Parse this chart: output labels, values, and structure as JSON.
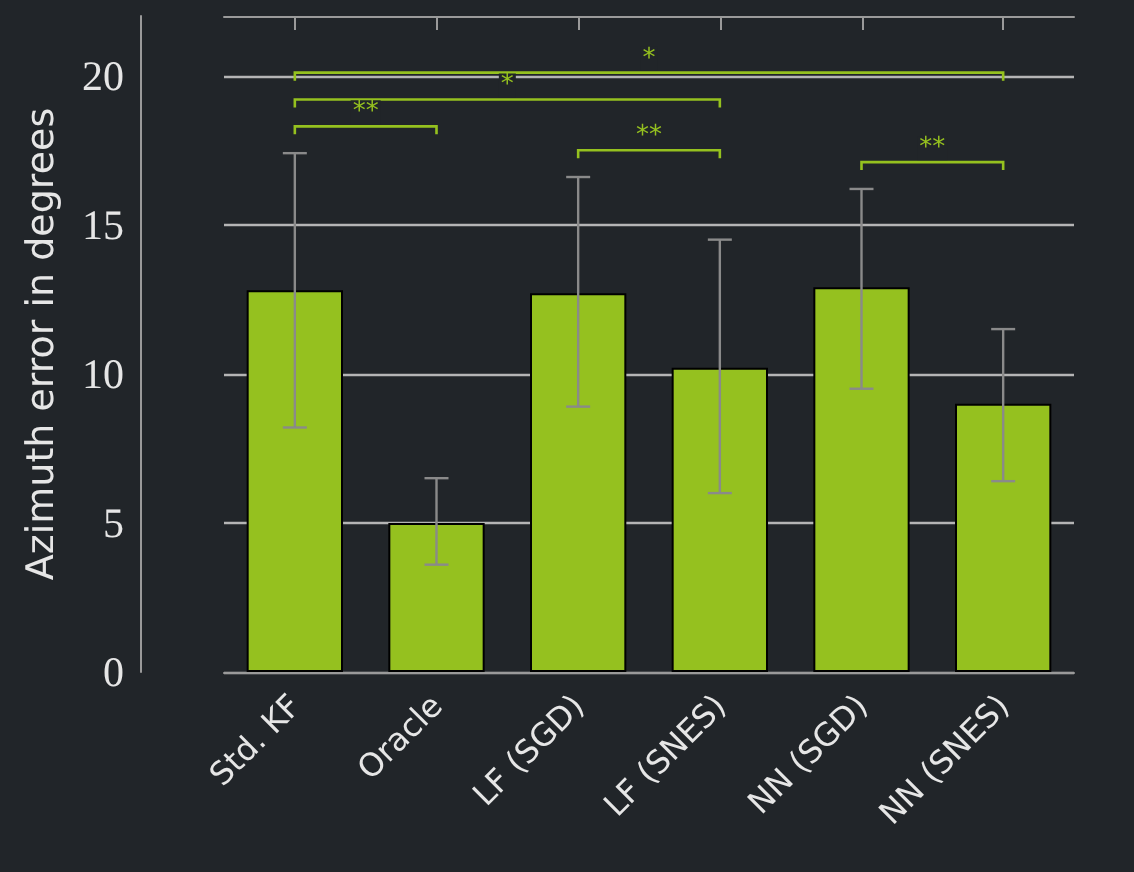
{
  "chart_data": {
    "type": "bar",
    "ylabel": "Azimuth error in degrees",
    "categories": [
      "Std. KF",
      "Oracle",
      "LF (SGD)",
      "LF (SNES)",
      "NN (SGD)",
      "NN (SNES)"
    ],
    "values": [
      12.8,
      5.0,
      12.7,
      10.2,
      12.9,
      9.0
    ],
    "errors": [
      [
        8.2,
        17.4
      ],
      [
        3.6,
        6.5
      ],
      [
        8.9,
        16.6
      ],
      [
        6.0,
        14.5
      ],
      [
        9.5,
        16.2
      ],
      [
        6.4,
        11.5
      ]
    ],
    "color": "#95c11f",
    "ylim": [
      0,
      22
    ],
    "yticks": [
      0,
      5,
      10,
      15,
      20
    ],
    "grid": "y",
    "annotations": [
      "*",
      "*",
      "**",
      "**",
      "**"
    ]
  }
}
